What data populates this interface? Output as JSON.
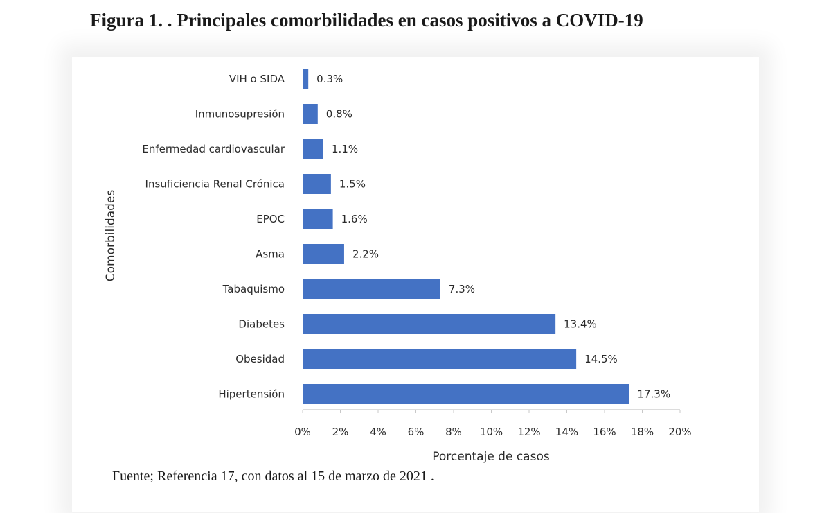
{
  "figure": {
    "title": "Figura 1. . Principales comorbilidades en casos positivos a COVID-19",
    "source": "Fuente; Referencia 17, con  datos al 15 de marzo de 2021 ."
  },
  "chart_data": {
    "type": "bar",
    "orientation": "horizontal",
    "title": "",
    "xlabel": "Porcentaje de casos",
    "ylabel": "Comorbilidades",
    "categories": [
      "VIH o SIDA",
      "Inmunosupresión",
      "Enfermedad cardiovascular",
      "Insuficiencia Renal Crónica",
      "EPOC",
      "Asma",
      "Tabaquismo",
      "Diabetes",
      "Obesidad",
      "Hipertensión"
    ],
    "values": [
      0.3,
      0.8,
      1.1,
      1.5,
      1.6,
      2.2,
      7.3,
      13.4,
      14.5,
      17.3
    ],
    "value_labels": [
      "0.3%",
      "0.8%",
      "1.1%",
      "1.5%",
      "1.6%",
      "2.2%",
      "7.3%",
      "13.4%",
      "14.5%",
      "17.3%"
    ],
    "xlim": [
      0,
      20
    ],
    "xticks": [
      0,
      2,
      4,
      6,
      8,
      10,
      12,
      14,
      16,
      18,
      20
    ],
    "xtick_labels": [
      "0%",
      "2%",
      "4%",
      "6%",
      "8%",
      "10%",
      "12%",
      "14%",
      "16%",
      "18%",
      "20%"
    ],
    "grid": false,
    "bar_color": "#4472c4"
  }
}
